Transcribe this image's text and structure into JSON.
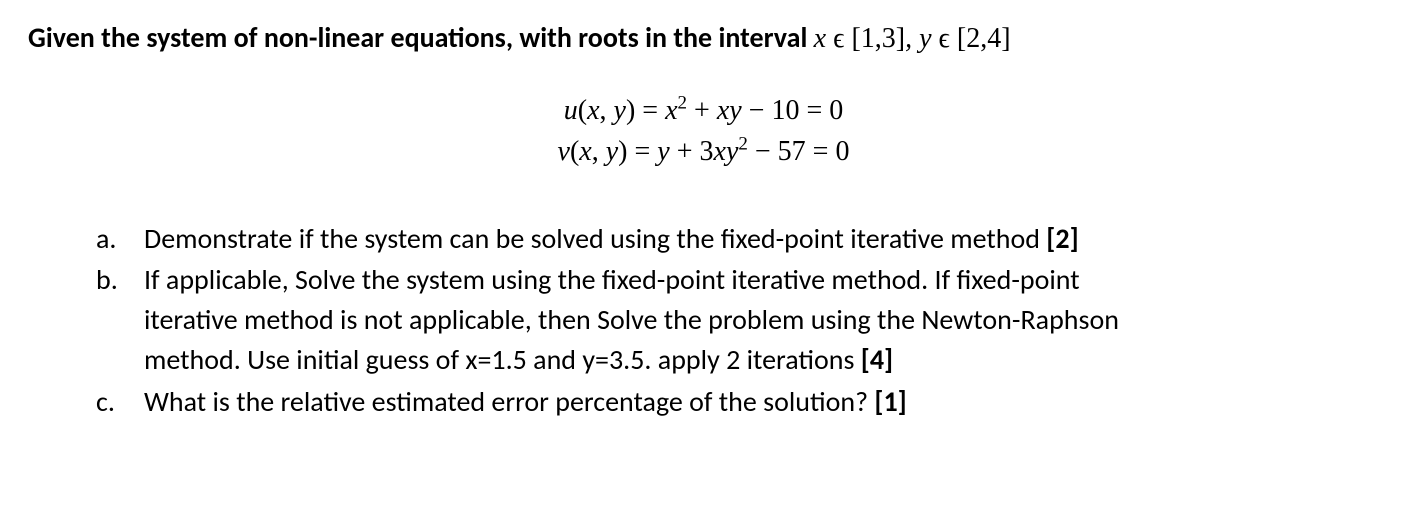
{
  "colors": {
    "text": "#000000",
    "background": "#ffffff"
  },
  "fonts": {
    "body_family": "Calibri",
    "math_family": "Cambria Math",
    "title_size_pt": 21,
    "body_size_pt": 21
  },
  "title": {
    "bold_part": "Given the system of non-linear equations, with roots in the interval ",
    "math_part": "x ϵ [1,3], y ϵ [2,4]"
  },
  "equations": {
    "u": "u(x, y) = x² + xy − 10 = 0",
    "v": "v(x, y) = y + 3xy² − 57 = 0"
  },
  "items": {
    "a": {
      "label": "a.",
      "text": "Demonstrate if the system can be solved using the fixed-point iterative method ",
      "points": "[2]"
    },
    "b": {
      "label": "b.",
      "line1": "If applicable, Solve the system using the fixed-point iterative method. If fixed-point",
      "line2": "iterative method is not applicable, then Solve the problem using the Newton-Raphson",
      "line3_pre": "method. Use initial guess of x=1.5 and y=3.5. apply 2 iterations ",
      "points": "[4]"
    },
    "c": {
      "label": "c.",
      "text": "What is the relative estimated error percentage of the solution? ",
      "points": "[1]"
    }
  }
}
